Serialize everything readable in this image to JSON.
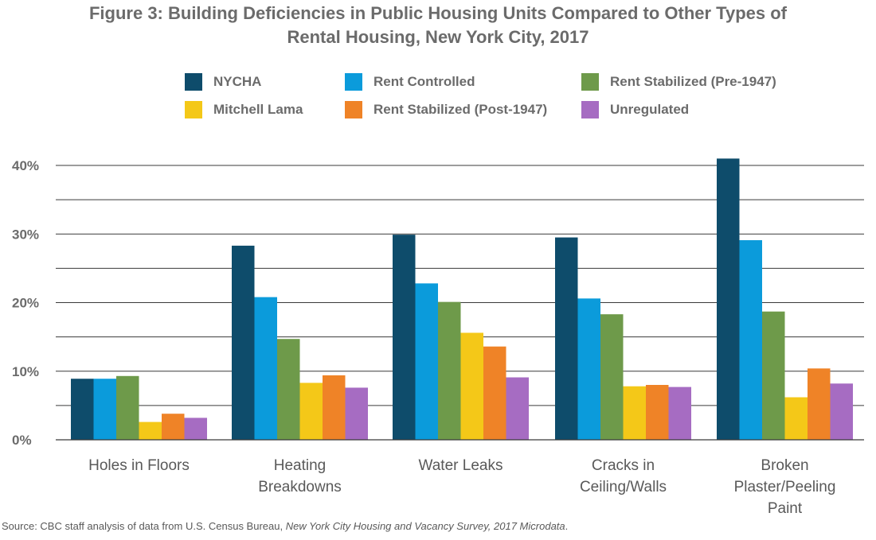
{
  "chart_data": {
    "type": "bar",
    "title_line1": "Figure 3: Building Deficiencies in Public Housing Units Compared to Other Types of",
    "title_line2": "Rental Housing, New York City, 2017",
    "categories": [
      [
        "Holes in Floors"
      ],
      [
        "Heating",
        "Breakdowns"
      ],
      [
        "Water Leaks"
      ],
      [
        "Cracks in",
        "Ceiling/Walls"
      ],
      [
        "Broken",
        "Plaster/Peeling",
        "Paint"
      ]
    ],
    "series": [
      {
        "name": "NYCHA",
        "color": "#0e4c6b",
        "values": [
          8.9,
          28.3,
          29.9,
          29.5,
          41.0
        ]
      },
      {
        "name": "Rent Controlled",
        "color": "#0b9bdb",
        "values": [
          8.9,
          20.8,
          22.8,
          20.6,
          29.1
        ]
      },
      {
        "name": "Rent Stabilized (Pre-1947)",
        "color": "#6e9a4a",
        "values": [
          9.3,
          14.7,
          20.1,
          18.3,
          18.7
        ]
      },
      {
        "name": "Mitchell Lama",
        "color": "#f4c818",
        "values": [
          2.6,
          8.3,
          15.6,
          7.8,
          6.2
        ]
      },
      {
        "name": "Rent Stabilized (Post-1947)",
        "color": "#ef8327",
        "values": [
          3.8,
          9.4,
          13.6,
          8.0,
          10.4
        ]
      },
      {
        "name": "Unregulated",
        "color": "#a66cc2",
        "values": [
          3.2,
          7.6,
          9.1,
          7.7,
          8.2
        ]
      }
    ],
    "y_ticks": [
      "0%",
      "10%",
      "20%",
      "30%",
      "40%"
    ],
    "ylim": [
      0,
      44
    ],
    "grid": true,
    "legend_position": "top"
  },
  "source": {
    "prefix": "Source: CBC staff analysis of data from U.S. Census Bureau, ",
    "italic": "New York City Housing and Vacancy Survey, 2017 Microdata",
    "suffix": "."
  }
}
